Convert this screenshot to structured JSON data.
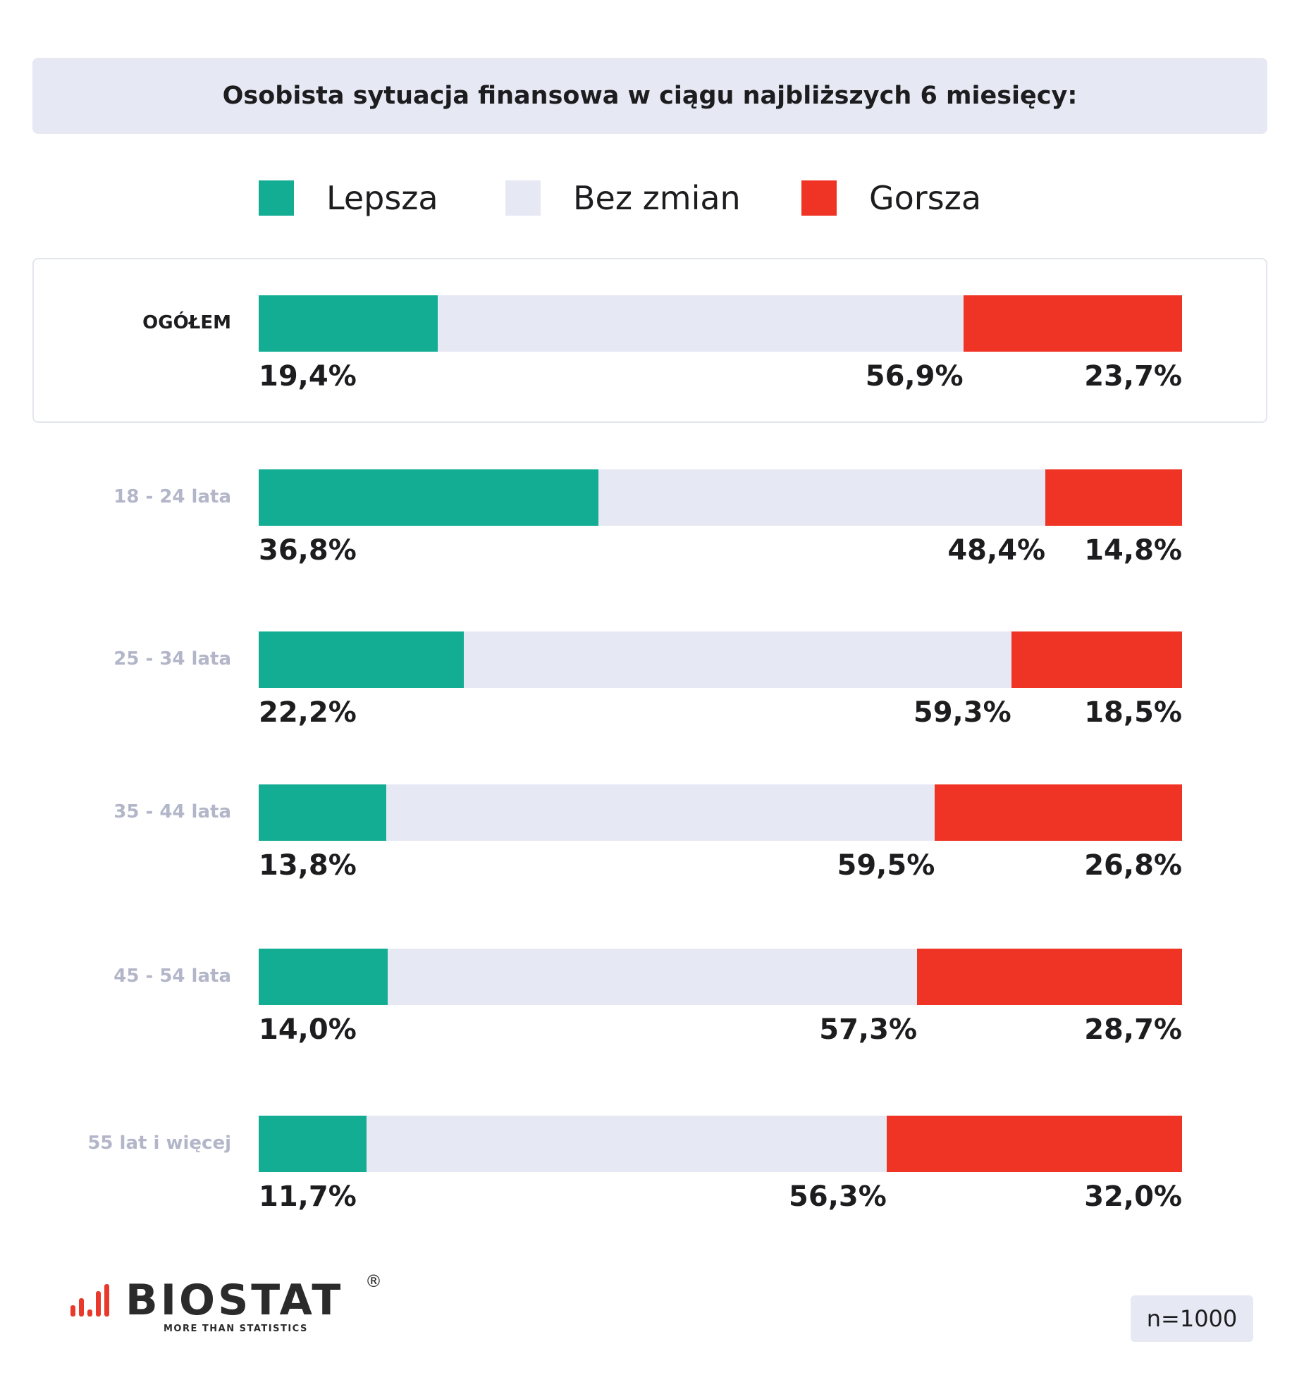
{
  "colors": {
    "lepsza": "#13ad94",
    "bez_zmian": "#e6e8f4",
    "gorsza": "#ef3426"
  },
  "chart_data": {
    "type": "bar",
    "orientation": "horizontal",
    "stacked": true,
    "title": "Osobista sytuacja finansowa w ciągu najbliższych 6 miesięcy:",
    "legend_position": "top",
    "xlim": [
      0,
      100
    ],
    "categories": [
      "OGÓŁEM",
      "18 - 24 lata",
      "25 - 34 lata",
      "35 - 44 lata",
      "45 - 54 lata",
      "55 lat i więcej"
    ],
    "series": [
      {
        "name": "Lepsza",
        "values": [
          19.4,
          36.8,
          22.2,
          13.8,
          14.0,
          11.7
        ],
        "labels": [
          "19,4%",
          "36,8%",
          "22,2%",
          "13,8%",
          "14,0%",
          "11,7%"
        ]
      },
      {
        "name": "Bez zmian",
        "values": [
          56.9,
          48.4,
          59.3,
          59.5,
          57.3,
          56.3
        ],
        "labels": [
          "56,9%",
          "48,4%",
          "59,3%",
          "59,5%",
          "57,3%",
          "56,3%"
        ]
      },
      {
        "name": "Gorsza",
        "values": [
          23.7,
          14.8,
          18.5,
          26.8,
          28.7,
          32.0
        ],
        "labels": [
          "23,7%",
          "14,8%",
          "18,5%",
          "26,8%",
          "28,7%",
          "32,0%"
        ]
      }
    ]
  },
  "sample_size": "n=1000",
  "logo": {
    "name": "BIOSTAT",
    "registered": "®",
    "tagline": "MORE THAN STATISTICS"
  }
}
